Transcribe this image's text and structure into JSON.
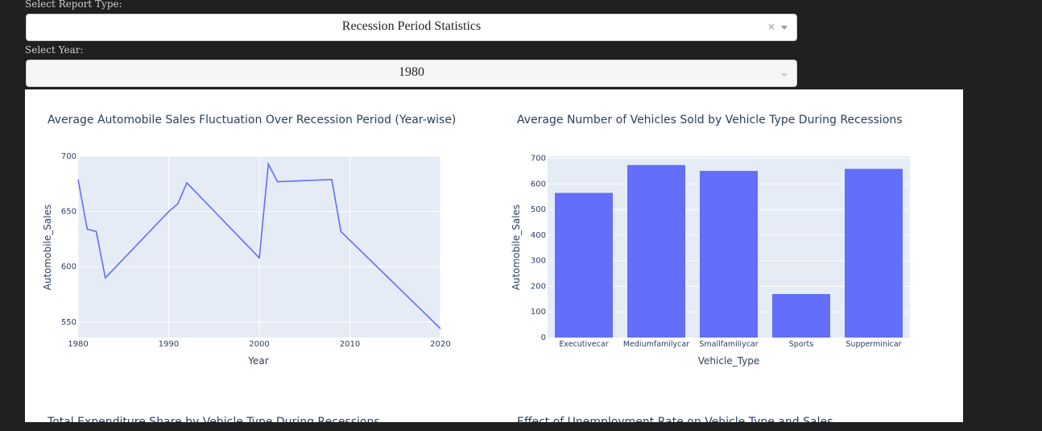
{
  "controls": {
    "report_label": "Select Report Type:",
    "report_value": "Recession Period Statistics",
    "report_clear": "×",
    "year_label": "Select Year:",
    "year_value": "1980"
  },
  "colors": {
    "series": "#636efa",
    "plot_bg": "#e5ecf6",
    "title_text": "#2a3f5f",
    "page_bg": "#202020"
  },
  "chart_data": [
    {
      "type": "line",
      "title": "Average Automobile Sales Fluctuation Over Recession Period (Year-wise)",
      "xlabel": "Year",
      "ylabel": "Automobile_Sales",
      "xlim": [
        1980,
        2020
      ],
      "ylim": [
        536,
        700
      ],
      "xticks": [
        1980,
        1990,
        2000,
        2010,
        2020
      ],
      "yticks": [
        550,
        600,
        650,
        700
      ],
      "x": [
        1980,
        1981,
        1982,
        1983,
        1990,
        1991,
        1992,
        2000,
        2001,
        2002,
        2008,
        2009,
        2020
      ],
      "y": [
        679,
        634,
        632,
        590,
        650,
        657,
        676,
        608,
        693,
        677,
        679,
        632,
        544
      ],
      "grid": true
    },
    {
      "type": "bar",
      "title": "Average Number of Vehicles Sold by Vehicle Type During Recessions",
      "xlabel": "Vehicle_Type",
      "ylabel": "Automobile_Sales",
      "ylim": [
        0,
        708
      ],
      "yticks": [
        0,
        100,
        200,
        300,
        400,
        500,
        600,
        700
      ],
      "categories": [
        "Executivecar",
        "Mediumfamilycar",
        "Smallfamiliycar",
        "Sports",
        "Supperminicar"
      ],
      "values": [
        565,
        674,
        651,
        170,
        659
      ],
      "grid": true
    },
    {
      "type": "pie",
      "title": "Total Expenditure Share by Vehicle Type During Recessions"
    },
    {
      "type": "bar",
      "title": "Effect of Unemployment Rate on Vehicle Type and Sales"
    }
  ]
}
